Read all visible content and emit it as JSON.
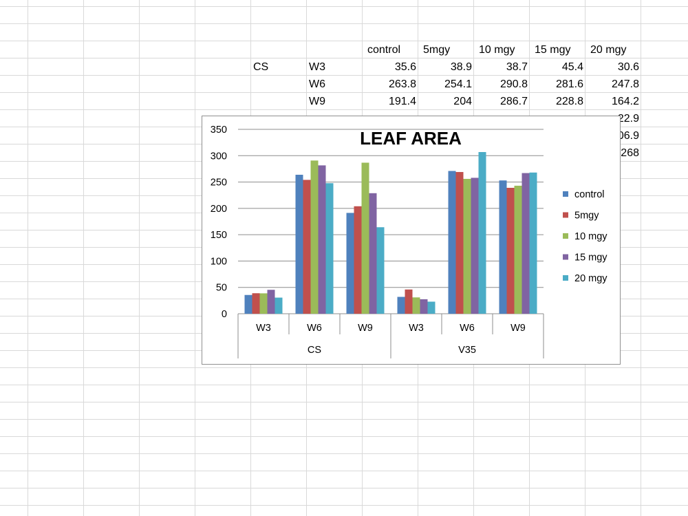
{
  "sheet": {
    "header_row": {
      "control": "control",
      "m5": "5mgy",
      "m10": "10 mgy",
      "m15": "15 mgy",
      "m20": "20 mgy"
    },
    "rows": [
      {
        "group": "CS",
        "week": "W3",
        "control": "35.6",
        "m5": "38.9",
        "m10": "38.7",
        "m15": "45.4",
        "m20": "30.6"
      },
      {
        "group": "",
        "week": "W6",
        "control": "263.8",
        "m5": "254.1",
        "m10": "290.8",
        "m15": "281.6",
        "m20": "247.8"
      },
      {
        "group": "",
        "week": "W9",
        "control": "191.4",
        "m5": "204",
        "m10": "286.7",
        "m15": "228.8",
        "m20": "164.2"
      }
    ],
    "partial_visible": {
      "row4_m20": "22.9",
      "row5_m20": "06.9",
      "row6_m20": "268"
    }
  },
  "chart_data": {
    "type": "bar",
    "title": "LEAF AREA",
    "y_ticks": [
      "0",
      "50",
      "100",
      "150",
      "200",
      "250",
      "300",
      "350"
    ],
    "ylim": [
      0,
      350
    ],
    "gridlines": true,
    "legend_position": "right",
    "categories": [
      {
        "label": "W3",
        "group": "CS"
      },
      {
        "label": "W6",
        "group": "CS"
      },
      {
        "label": "W9",
        "group": "CS"
      },
      {
        "label": "W3",
        "group": "V35"
      },
      {
        "label": "W6",
        "group": "V35"
      },
      {
        "label": "W9",
        "group": "V35"
      }
    ],
    "groups": [
      "CS",
      "V35"
    ],
    "series": [
      {
        "name": "control",
        "color": "#4F81BD",
        "values": [
          35.6,
          263.8,
          191.4,
          32,
          271,
          253
        ]
      },
      {
        "name": "5mgy",
        "color": "#C0504D",
        "values": [
          38.9,
          254.1,
          204,
          46,
          269,
          239
        ]
      },
      {
        "name": "10 mgy",
        "color": "#9BBB59",
        "values": [
          38.7,
          290.8,
          286.7,
          31,
          256,
          243
        ]
      },
      {
        "name": "15 mgy",
        "color": "#8064A2",
        "values": [
          45.4,
          281.6,
          228.8,
          27.5,
          258,
          267
        ]
      },
      {
        "name": "20 mgy",
        "color": "#4BACC6",
        "values": [
          30.6,
          247.8,
          164.2,
          22.9,
          306.9,
          268
        ]
      }
    ]
  }
}
